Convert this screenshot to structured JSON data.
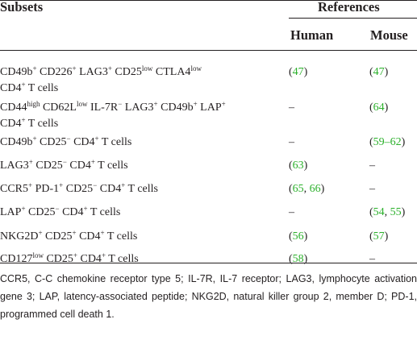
{
  "headers": {
    "subsets": "Subsets",
    "references": "References",
    "human": "Human",
    "mouse": "Mouse"
  },
  "rows": [
    {
      "subset_lines": [
        [
          [
            "CD49b",
            "+"
          ],
          [
            " CD226",
            "+"
          ],
          [
            " LAG3",
            "+"
          ],
          [
            " CD25",
            "low"
          ],
          [
            " CTLA4",
            "low"
          ]
        ],
        [
          [
            "CD4",
            "+"
          ],
          [
            " T cells",
            ""
          ]
        ]
      ],
      "human": [
        [
          "(",
          "t"
        ],
        [
          "47",
          "r"
        ],
        [
          ")",
          "t"
        ]
      ],
      "mouse": [
        [
          "(",
          "t"
        ],
        [
          "47",
          "r"
        ],
        [
          ")",
          "t"
        ]
      ]
    },
    {
      "subset_lines": [
        [
          [
            "CD44",
            "high"
          ],
          [
            " CD62L",
            "low"
          ],
          [
            " IL-7R",
            "−"
          ],
          [
            " LAG3",
            "+"
          ],
          [
            " CD49b",
            "+"
          ],
          [
            " LAP",
            "+"
          ]
        ],
        [
          [
            "CD4",
            "+"
          ],
          [
            " T cells",
            ""
          ]
        ]
      ],
      "human": [
        [
          "–",
          "t"
        ]
      ],
      "mouse": [
        [
          "(",
          "t"
        ],
        [
          "64",
          "r"
        ],
        [
          ")",
          "t"
        ]
      ]
    },
    {
      "subset_lines": [
        [
          [
            "CD49b",
            "+"
          ],
          [
            " CD25",
            "−"
          ],
          [
            " CD4",
            "+"
          ],
          [
            " T cells",
            ""
          ]
        ]
      ],
      "human": [
        [
          "–",
          "t"
        ]
      ],
      "mouse": [
        [
          "(",
          "t"
        ],
        [
          "59–62",
          "r"
        ],
        [
          ")",
          "t"
        ]
      ]
    },
    {
      "subset_lines": [
        [
          [
            "LAG3",
            "+"
          ],
          [
            " CD25",
            "−"
          ],
          [
            " CD4",
            "+"
          ],
          [
            " T cells",
            ""
          ]
        ]
      ],
      "human": [
        [
          "(",
          "t"
        ],
        [
          "63",
          "r"
        ],
        [
          ")",
          "t"
        ]
      ],
      "mouse": [
        [
          "–",
          "t"
        ]
      ]
    },
    {
      "subset_lines": [
        [
          [
            "CCR5",
            "+"
          ],
          [
            " PD-1",
            "+"
          ],
          [
            " CD25",
            "−"
          ],
          [
            " CD4",
            "+"
          ],
          [
            " T cells",
            ""
          ]
        ]
      ],
      "human": [
        [
          "(",
          "t"
        ],
        [
          "65",
          "r"
        ],
        [
          ", ",
          "t"
        ],
        [
          "66",
          "r"
        ],
        [
          ")",
          "t"
        ]
      ],
      "mouse": [
        [
          "–",
          "t"
        ]
      ]
    },
    {
      "subset_lines": [
        [
          [
            "LAP",
            "+"
          ],
          [
            " CD25",
            "−"
          ],
          [
            " CD4",
            "+"
          ],
          [
            " T cells",
            ""
          ]
        ]
      ],
      "human": [
        [
          "–",
          "t"
        ]
      ],
      "mouse": [
        [
          "(",
          "t"
        ],
        [
          "54",
          "r"
        ],
        [
          ", ",
          "t"
        ],
        [
          "55",
          "r"
        ],
        [
          ")",
          "t"
        ]
      ]
    },
    {
      "subset_lines": [
        [
          [
            "NKG2D",
            "+"
          ],
          [
            " CD25",
            "+"
          ],
          [
            " CD4",
            "+"
          ],
          [
            " T cells",
            ""
          ]
        ]
      ],
      "human": [
        [
          "(",
          "t"
        ],
        [
          "56",
          "r"
        ],
        [
          ")",
          "t"
        ]
      ],
      "mouse": [
        [
          "(",
          "t"
        ],
        [
          "57",
          "r"
        ],
        [
          ")",
          "t"
        ]
      ]
    },
    {
      "subset_lines": [
        [
          [
            "CD127",
            "low"
          ],
          [
            " CD25",
            "+"
          ],
          [
            " CD4",
            "+"
          ],
          [
            " T cells",
            ""
          ]
        ]
      ],
      "human": [
        [
          "(",
          "t"
        ],
        [
          "58",
          "r"
        ],
        [
          ")",
          "t"
        ]
      ],
      "mouse": [
        [
          "–",
          "t"
        ]
      ]
    }
  ],
  "footnote": "CCR5, C-C chemokine receptor type 5; IL-7R, IL-7 receptor; LAG3, lymphocyte activation gene 3; LAP, latency-associated peptide; NKG2D, natural killer group 2, member D; PD-1, programmed cell death 1.",
  "colors": {
    "text": "#231f20",
    "reference_link": "#2bb02b"
  }
}
